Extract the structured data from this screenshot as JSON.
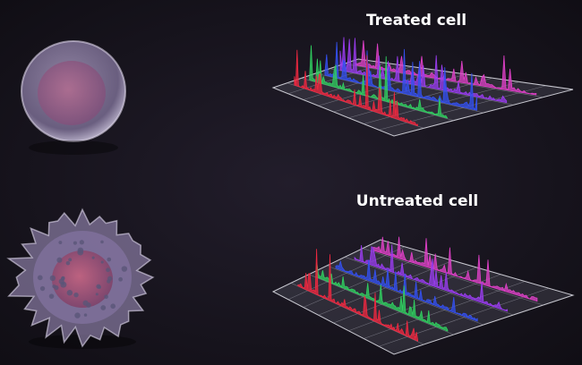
{
  "labels": {
    "treated": "Treated cell",
    "untreated": "Untreated cell"
  }
}
